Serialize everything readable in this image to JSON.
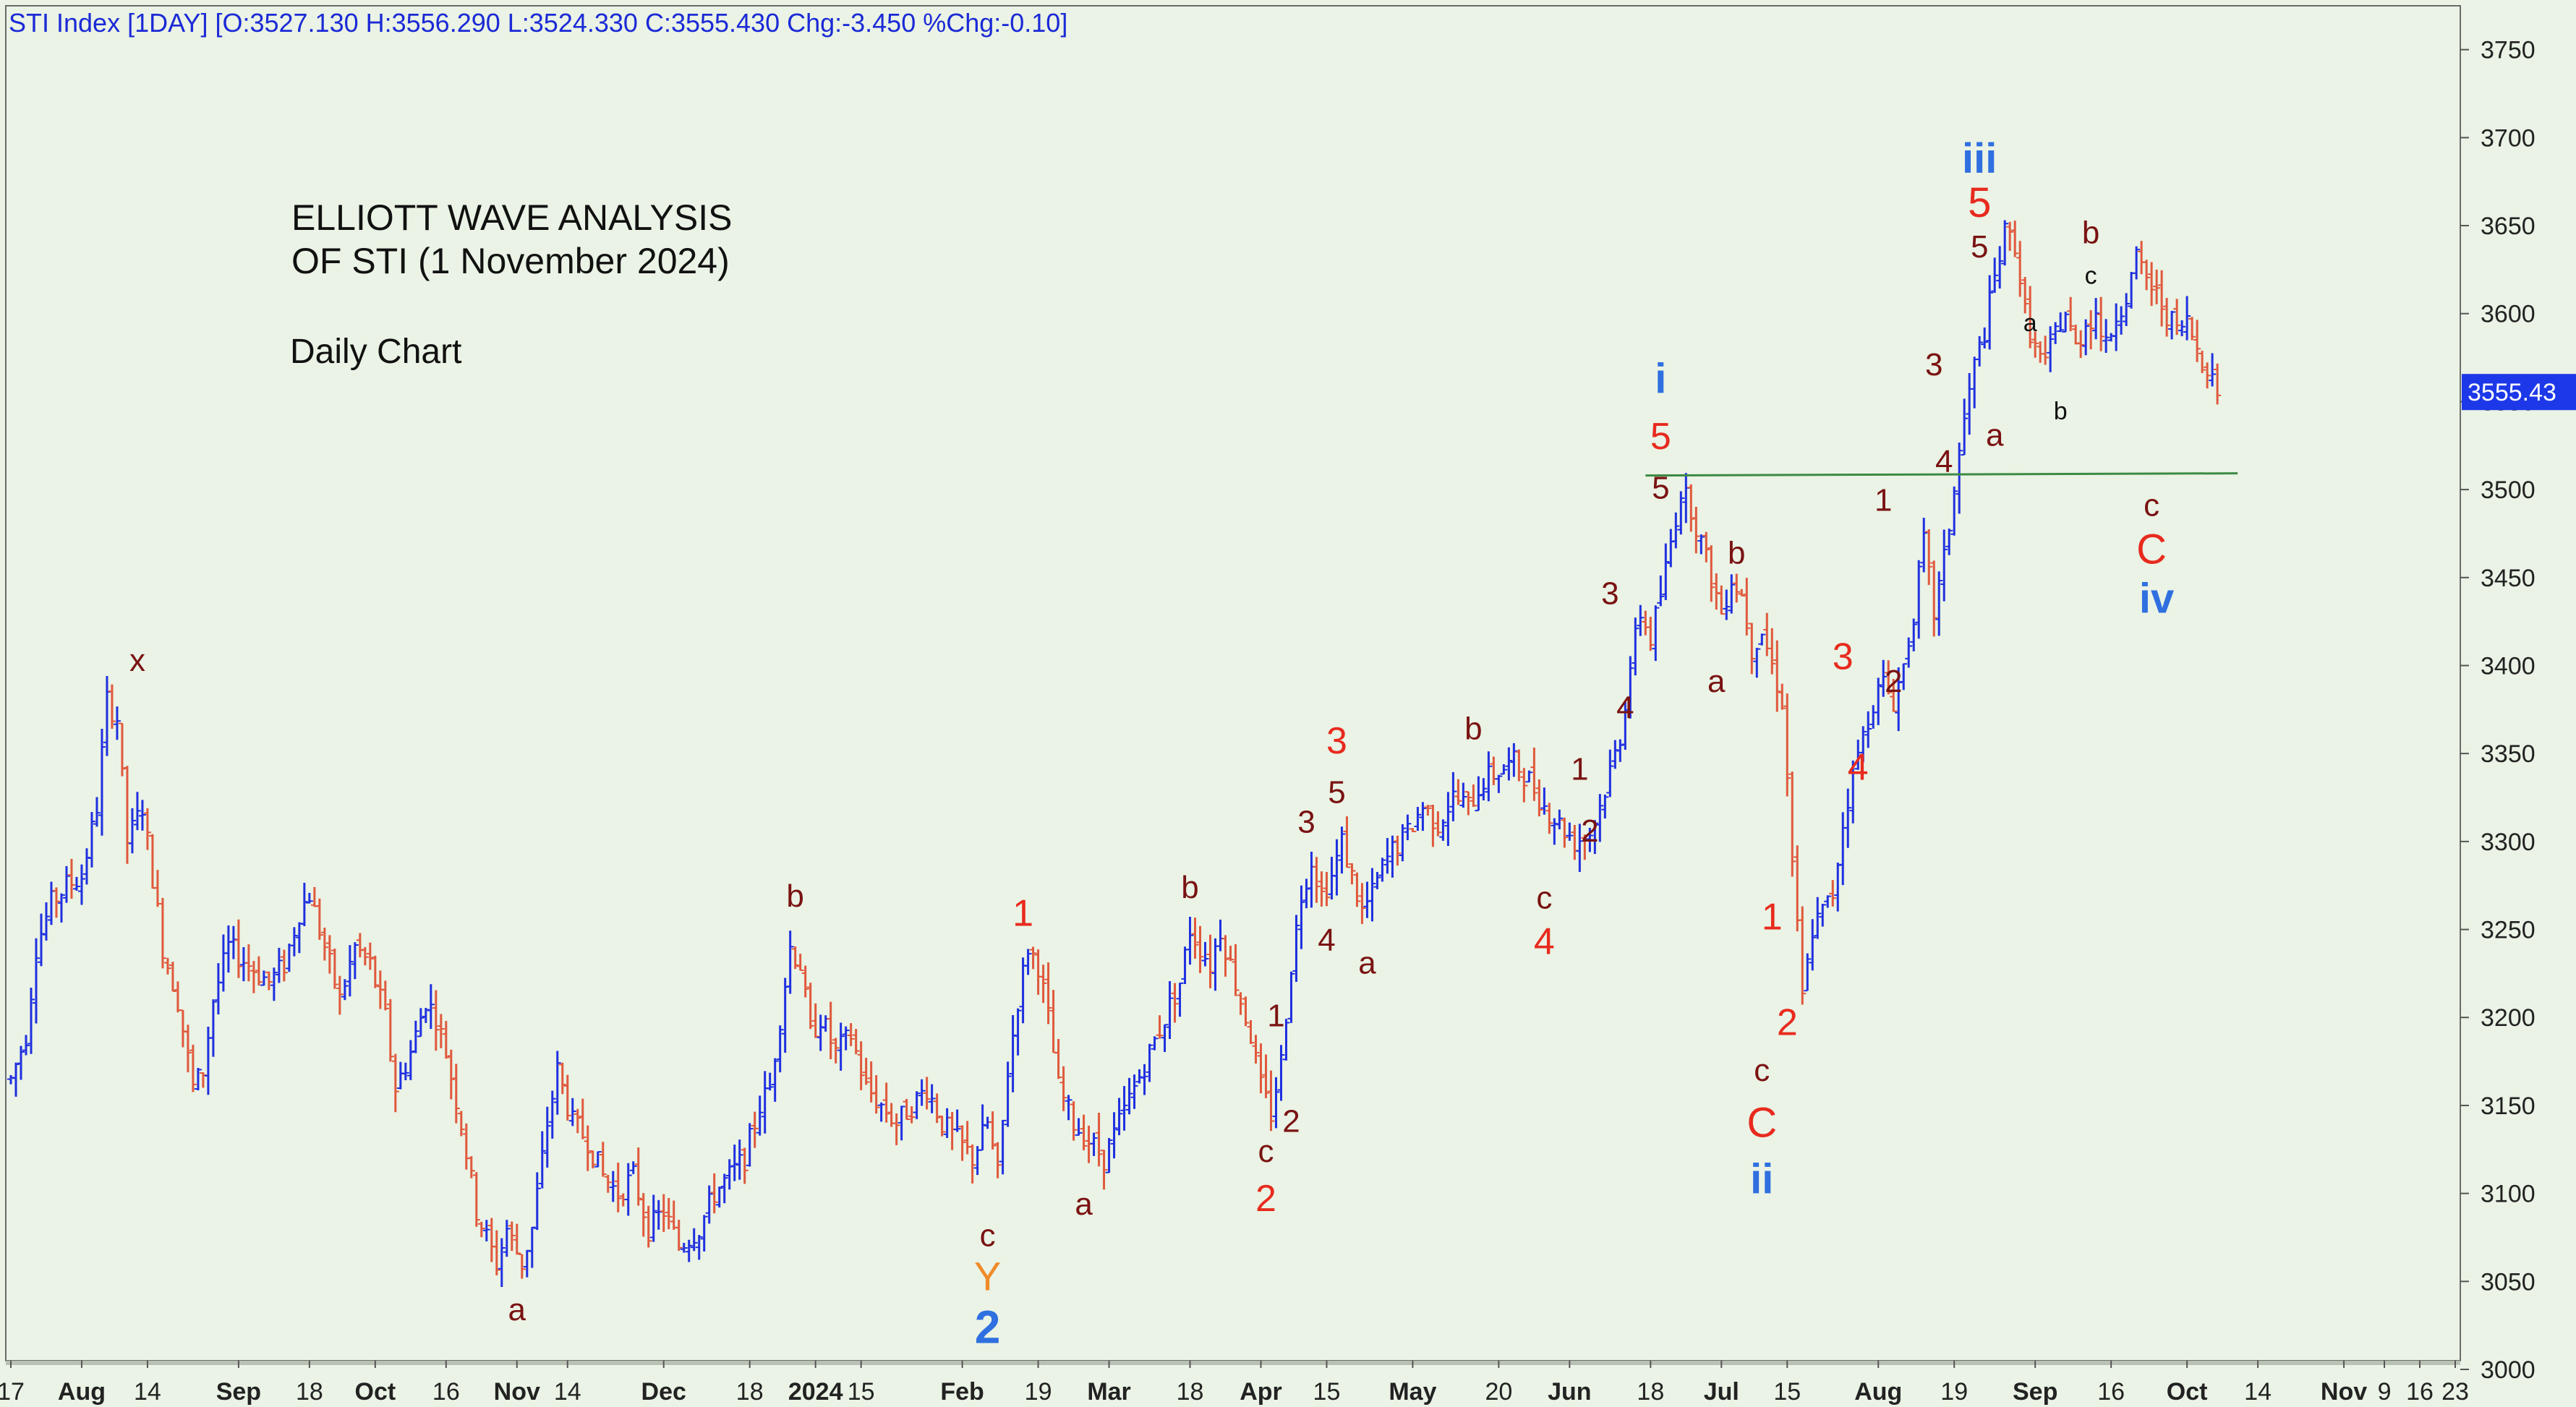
{
  "header": {
    "text": "STI Index [1DAY] [O:3527.130 H:3556.290 L:3524.330 C:3555.430 Chg:-3.450 %Chg:-0.10]"
  },
  "annotations": {
    "title_line1": "ELLIOTT WAVE ANALYSIS",
    "title_line2": "OF STI (1 November 2024)",
    "subtitle": "Daily Chart"
  },
  "colors": {
    "background": "#eaf3e5",
    "up_bar": "#1f2fe0",
    "down_bar": "#e0583c",
    "label_dark": "#7a1212",
    "label_red": "#e82a1e",
    "label_blue": "#2f6fe0",
    "label_orange": "#f08a28",
    "label_black": "#111111",
    "support_line": "#3b8a44",
    "price_tag_bg": "#1d38e8"
  },
  "chart_data": {
    "type": "ohlc",
    "ylim": [
      3000,
      3770
    ],
    "y_ticks": [
      3000,
      3050,
      3100,
      3150,
      3200,
      3250,
      3300,
      3350,
      3400,
      3450,
      3500,
      3550,
      3600,
      3650,
      3700,
      3750
    ],
    "last_price": "3555.43",
    "support_level": 3508,
    "x_ticks": [
      {
        "label": "17",
        "bold": false,
        "day": 0
      },
      {
        "label": "Aug",
        "bold": true,
        "day": 14
      },
      {
        "label": "14",
        "bold": false,
        "day": 27
      },
      {
        "label": "Sep",
        "bold": true,
        "day": 45
      },
      {
        "label": "18",
        "bold": false,
        "day": 59
      },
      {
        "label": "Oct",
        "bold": true,
        "day": 72
      },
      {
        "label": "16",
        "bold": false,
        "day": 86
      },
      {
        "label": "Nov",
        "bold": true,
        "day": 100
      },
      {
        "label": "14",
        "bold": false,
        "day": 110
      },
      {
        "label": "Dec",
        "bold": true,
        "day": 129
      },
      {
        "label": "18",
        "bold": false,
        "day": 146
      },
      {
        "label": "2024",
        "bold": true,
        "day": 159
      },
      {
        "label": "15",
        "bold": false,
        "day": 168
      },
      {
        "label": "Feb",
        "bold": true,
        "day": 188
      },
      {
        "label": "19",
        "bold": false,
        "day": 203
      },
      {
        "label": "Mar",
        "bold": true,
        "day": 217
      },
      {
        "label": "18",
        "bold": false,
        "day": 233
      },
      {
        "label": "Apr",
        "bold": true,
        "day": 247
      },
      {
        "label": "15",
        "bold": false,
        "day": 260
      },
      {
        "label": "May",
        "bold": true,
        "day": 277
      },
      {
        "label": "20",
        "bold": false,
        "day": 294
      },
      {
        "label": "Jun",
        "bold": true,
        "day": 308
      },
      {
        "label": "18",
        "bold": false,
        "day": 324
      },
      {
        "label": "Jul",
        "bold": true,
        "day": 338
      },
      {
        "label": "15",
        "bold": false,
        "day": 351
      },
      {
        "label": "Aug",
        "bold": true,
        "day": 369
      },
      {
        "label": "19",
        "bold": false,
        "day": 384
      },
      {
        "label": "Sep",
        "bold": true,
        "day": 400
      },
      {
        "label": "16",
        "bold": false,
        "day": 415
      },
      {
        "label": "Oct",
        "bold": true,
        "day": 430
      },
      {
        "label": "14",
        "bold": false,
        "day": 444
      },
      {
        "label": "Nov",
        "bold": true,
        "day": 461
      },
      {
        "label": "9",
        "bold": false,
        "day": 469
      },
      {
        "label": "16",
        "bold": false,
        "day": 476
      },
      {
        "label": "23",
        "bold": false,
        "day": 483
      }
    ],
    "day_range": [
      -1,
      484
    ],
    "anchors": [
      [
        0,
        3165
      ],
      [
        3,
        3190
      ],
      [
        5,
        3240
      ],
      [
        8,
        3265
      ],
      [
        11,
        3275
      ],
      [
        14,
        3280
      ],
      [
        17,
        3320
      ],
      [
        19,
        3380
      ],
      [
        21,
        3370
      ],
      [
        23,
        3300
      ],
      [
        26,
        3320
      ],
      [
        28,
        3280
      ],
      [
        30,
        3240
      ],
      [
        33,
        3210
      ],
      [
        36,
        3160
      ],
      [
        38,
        3170
      ],
      [
        40,
        3210
      ],
      [
        43,
        3240
      ],
      [
        47,
        3230
      ],
      [
        51,
        3220
      ],
      [
        54,
        3230
      ],
      [
        57,
        3260
      ],
      [
        59,
        3270
      ],
      [
        62,
        3240
      ],
      [
        65,
        3210
      ],
      [
        68,
        3240
      ],
      [
        71,
        3230
      ],
      [
        74,
        3200
      ],
      [
        76,
        3160
      ],
      [
        79,
        3180
      ],
      [
        82,
        3210
      ],
      [
        84,
        3200
      ],
      [
        86,
        3180
      ],
      [
        89,
        3140
      ],
      [
        92,
        3090
      ],
      [
        96,
        3060
      ],
      [
        98,
        3080
      ],
      [
        101,
        3060
      ],
      [
        103,
        3080
      ],
      [
        106,
        3140
      ],
      [
        108,
        3170
      ],
      [
        111,
        3140
      ],
      [
        114,
        3130
      ],
      [
        117,
        3110
      ],
      [
        120,
        3100
      ],
      [
        123,
        3110
      ],
      [
        126,
        3080
      ],
      [
        129,
        3090
      ],
      [
        132,
        3070
      ],
      [
        136,
        3080
      ],
      [
        139,
        3100
      ],
      [
        142,
        3110
      ],
      [
        145,
        3120
      ],
      [
        148,
        3150
      ],
      [
        150,
        3160
      ],
      [
        152,
        3200
      ],
      [
        154,
        3240
      ],
      [
        156,
        3230
      ],
      [
        158,
        3190
      ],
      [
        160,
        3200
      ],
      [
        163,
        3180
      ],
      [
        166,
        3190
      ],
      [
        169,
        3160
      ],
      [
        172,
        3150
      ],
      [
        175,
        3140
      ],
      [
        178,
        3150
      ],
      [
        181,
        3160
      ],
      [
        184,
        3140
      ],
      [
        187,
        3130
      ],
      [
        190,
        3120
      ],
      [
        193,
        3140
      ],
      [
        195,
        3110
      ],
      [
        197,
        3170
      ],
      [
        199,
        3210
      ],
      [
        201,
        3240
      ],
      [
        203,
        3230
      ],
      [
        205,
        3200
      ],
      [
        207,
        3160
      ],
      [
        210,
        3140
      ],
      [
        213,
        3130
      ],
      [
        216,
        3120
      ],
      [
        219,
        3140
      ],
      [
        222,
        3160
      ],
      [
        225,
        3180
      ],
      [
        228,
        3200
      ],
      [
        231,
        3220
      ],
      [
        233,
        3250
      ],
      [
        235,
        3240
      ],
      [
        237,
        3230
      ],
      [
        239,
        3250
      ],
      [
        241,
        3230
      ],
      [
        243,
        3210
      ],
      [
        245,
        3190
      ],
      [
        247,
        3160
      ],
      [
        249,
        3145
      ],
      [
        251,
        3175
      ],
      [
        253,
        3230
      ],
      [
        255,
        3270
      ],
      [
        257,
        3290
      ],
      [
        259,
        3270
      ],
      [
        261,
        3280
      ],
      [
        263,
        3300
      ],
      [
        265,
        3280
      ],
      [
        267,
        3260
      ],
      [
        269,
        3270
      ],
      [
        271,
        3285
      ],
      [
        273,
        3295
      ],
      [
        276,
        3305
      ],
      [
        279,
        3320
      ],
      [
        282,
        3310
      ],
      [
        285,
        3325
      ],
      [
        288,
        3320
      ],
      [
        291,
        3335
      ],
      [
        294,
        3340
      ],
      [
        297,
        3345
      ],
      [
        300,
        3335
      ],
      [
        303,
        3320
      ],
      [
        306,
        3310
      ],
      [
        309,
        3300
      ],
      [
        312,
        3305
      ],
      [
        314,
        3320
      ],
      [
        316,
        3340
      ],
      [
        318,
        3360
      ],
      [
        320,
        3400
      ],
      [
        322,
        3430
      ],
      [
        324,
        3415
      ],
      [
        326,
        3440
      ],
      [
        328,
        3470
      ],
      [
        330,
        3500
      ],
      [
        332,
        3490
      ],
      [
        334,
        3470
      ],
      [
        336,
        3450
      ],
      [
        338,
        3430
      ],
      [
        340,
        3450
      ],
      [
        342,
        3440
      ],
      [
        344,
        3410
      ],
      [
        346,
        3420
      ],
      [
        348,
        3400
      ],
      [
        350,
        3380
      ],
      [
        352,
        3290
      ],
      [
        354,
        3210
      ],
      [
        356,
        3250
      ],
      [
        358,
        3260
      ],
      [
        360,
        3270
      ],
      [
        362,
        3310
      ],
      [
        364,
        3340
      ],
      [
        366,
        3360
      ],
      [
        368,
        3380
      ],
      [
        370,
        3390
      ],
      [
        372,
        3380
      ],
      [
        374,
        3400
      ],
      [
        376,
        3430
      ],
      [
        378,
        3470
      ],
      [
        380,
        3430
      ],
      [
        382,
        3460
      ],
      [
        384,
        3500
      ],
      [
        386,
        3540
      ],
      [
        388,
        3570
      ],
      [
        390,
        3590
      ],
      [
        392,
        3620
      ],
      [
        394,
        3645
      ],
      [
        396,
        3640
      ],
      [
        398,
        3600
      ],
      [
        400,
        3580
      ],
      [
        402,
        3570
      ],
      [
        404,
        3590
      ],
      [
        406,
        3600
      ],
      [
        408,
        3580
      ],
      [
        410,
        3595
      ],
      [
        412,
        3600
      ],
      [
        414,
        3580
      ],
      [
        416,
        3600
      ],
      [
        418,
        3610
      ],
      [
        420,
        3630
      ],
      [
        422,
        3620
      ],
      [
        424,
        3610
      ],
      [
        426,
        3600
      ],
      [
        428,
        3590
      ],
      [
        430,
        3595
      ],
      [
        432,
        3580
      ],
      [
        434,
        3570
      ],
      [
        436,
        3556
      ]
    ],
    "wave_labels": [
      {
        "text": "x",
        "day": 25,
        "price": 3397,
        "size": 44,
        "color": "label_dark",
        "weight": "normal"
      },
      {
        "text": "a",
        "day": 100,
        "price": 3028,
        "size": 44,
        "color": "label_dark",
        "weight": "normal"
      },
      {
        "text": "b",
        "day": 155,
        "price": 3263,
        "size": 44,
        "color": "label_dark",
        "weight": "normal"
      },
      {
        "text": "1",
        "day": 200,
        "price": 3252,
        "size": 52,
        "color": "label_red",
        "weight": "normal"
      },
      {
        "text": "c",
        "day": 193,
        "price": 3070,
        "size": 44,
        "color": "label_dark",
        "weight": "normal"
      },
      {
        "text": "Y",
        "day": 193,
        "price": 3045,
        "size": 56,
        "color": "label_orange",
        "weight": "normal"
      },
      {
        "text": "2",
        "day": 193,
        "price": 3015,
        "size": 64,
        "color": "label_blue",
        "weight": "bold"
      },
      {
        "text": "a",
        "day": 212,
        "price": 3088,
        "size": 44,
        "color": "label_dark",
        "weight": "normal"
      },
      {
        "text": "b",
        "day": 233,
        "price": 3268,
        "size": 44,
        "color": "label_dark",
        "weight": "normal"
      },
      {
        "text": "1",
        "day": 250,
        "price": 3195,
        "size": 44,
        "color": "label_dark",
        "weight": "normal"
      },
      {
        "text": "2",
        "day": 253,
        "price": 3135,
        "size": 44,
        "color": "label_dark",
        "weight": "normal"
      },
      {
        "text": "c",
        "day": 248,
        "price": 3118,
        "size": 44,
        "color": "label_dark",
        "weight": "normal"
      },
      {
        "text": "2",
        "day": 248,
        "price": 3090,
        "size": 52,
        "color": "label_red",
        "weight": "normal"
      },
      {
        "text": "3",
        "day": 256,
        "price": 3305,
        "size": 44,
        "color": "label_dark",
        "weight": "normal"
      },
      {
        "text": "4",
        "day": 260,
        "price": 3238,
        "size": 44,
        "color": "label_dark",
        "weight": "normal"
      },
      {
        "text": "3",
        "day": 262,
        "price": 3350,
        "size": 52,
        "color": "label_red",
        "weight": "normal"
      },
      {
        "text": "5",
        "day": 262,
        "price": 3322,
        "size": 44,
        "color": "label_dark",
        "weight": "normal"
      },
      {
        "text": "a",
        "day": 268,
        "price": 3225,
        "size": 44,
        "color": "label_dark",
        "weight": "normal"
      },
      {
        "text": "b",
        "day": 289,
        "price": 3358,
        "size": 44,
        "color": "label_dark",
        "weight": "normal"
      },
      {
        "text": "c",
        "day": 303,
        "price": 3262,
        "size": 44,
        "color": "label_dark",
        "weight": "normal"
      },
      {
        "text": "4",
        "day": 303,
        "price": 3236,
        "size": 52,
        "color": "label_red",
        "weight": "normal"
      },
      {
        "text": "1",
        "day": 310,
        "price": 3335,
        "size": 44,
        "color": "label_dark",
        "weight": "normal"
      },
      {
        "text": "2",
        "day": 312,
        "price": 3300,
        "size": 44,
        "color": "label_dark",
        "weight": "normal"
      },
      {
        "text": "3",
        "day": 316,
        "price": 3435,
        "size": 44,
        "color": "label_dark",
        "weight": "normal"
      },
      {
        "text": "4",
        "day": 319,
        "price": 3370,
        "size": 44,
        "color": "label_dark",
        "weight": "normal"
      },
      {
        "text": "i",
        "day": 326,
        "price": 3555,
        "size": 58,
        "color": "label_blue",
        "weight": "bold"
      },
      {
        "text": "5",
        "day": 326,
        "price": 3523,
        "size": 52,
        "color": "label_red",
        "weight": "normal"
      },
      {
        "text": "5",
        "day": 326,
        "price": 3495,
        "size": 44,
        "color": "label_dark",
        "weight": "normal"
      },
      {
        "text": "b",
        "day": 341,
        "price": 3458,
        "size": 44,
        "color": "label_dark",
        "weight": "normal"
      },
      {
        "text": "a",
        "day": 337,
        "price": 3385,
        "size": 44,
        "color": "label_dark",
        "weight": "normal"
      },
      {
        "text": "1",
        "day": 348,
        "price": 3250,
        "size": 52,
        "color": "label_red",
        "weight": "normal"
      },
      {
        "text": "2",
        "day": 351,
        "price": 3190,
        "size": 52,
        "color": "label_red",
        "weight": "normal"
      },
      {
        "text": "c",
        "day": 346,
        "price": 3164,
        "size": 44,
        "color": "label_dark",
        "weight": "normal"
      },
      {
        "text": "C",
        "day": 346,
        "price": 3132,
        "size": 58,
        "color": "label_red",
        "weight": "normal"
      },
      {
        "text": "ii",
        "day": 346,
        "price": 3100,
        "size": 58,
        "color": "label_blue",
        "weight": "bold"
      },
      {
        "text": "3",
        "day": 362,
        "price": 3398,
        "size": 52,
        "color": "label_red",
        "weight": "normal"
      },
      {
        "text": "4",
        "day": 365,
        "price": 3335,
        "size": 52,
        "color": "label_red",
        "weight": "normal"
      },
      {
        "text": "1",
        "day": 370,
        "price": 3488,
        "size": 44,
        "color": "label_dark",
        "weight": "normal"
      },
      {
        "text": "2",
        "day": 372,
        "price": 3385,
        "size": 44,
        "color": "label_dark",
        "weight": "normal"
      },
      {
        "text": "3",
        "day": 380,
        "price": 3565,
        "size": 44,
        "color": "label_dark",
        "weight": "normal"
      },
      {
        "text": "4",
        "day": 382,
        "price": 3510,
        "size": 44,
        "color": "label_dark",
        "weight": "normal"
      },
      {
        "text": "iii",
        "day": 389,
        "price": 3680,
        "size": 58,
        "color": "label_blue",
        "weight": "bold"
      },
      {
        "text": "5",
        "day": 389,
        "price": 3655,
        "size": 58,
        "color": "label_red",
        "weight": "normal"
      },
      {
        "text": "5",
        "day": 389,
        "price": 3632,
        "size": 44,
        "color": "label_dark",
        "weight": "normal"
      },
      {
        "text": "a",
        "day": 392,
        "price": 3525,
        "size": 44,
        "color": "label_dark",
        "weight": "normal"
      },
      {
        "text": "a",
        "day": 399,
        "price": 3590,
        "size": 34,
        "color": "label_black",
        "weight": "normal"
      },
      {
        "text": "b",
        "day": 405,
        "price": 3540,
        "size": 34,
        "color": "label_black",
        "weight": "normal"
      },
      {
        "text": "b",
        "day": 411,
        "price": 3640,
        "size": 44,
        "color": "label_dark",
        "weight": "normal"
      },
      {
        "text": "c",
        "day": 411,
        "price": 3617,
        "size": 34,
        "color": "label_black",
        "weight": "normal"
      },
      {
        "text": "c",
        "day": 423,
        "price": 3485,
        "size": 44,
        "color": "label_dark",
        "weight": "normal"
      },
      {
        "text": "C",
        "day": 423,
        "price": 3458,
        "size": 58,
        "color": "label_red",
        "weight": "normal"
      },
      {
        "text": "iv",
        "day": 424,
        "price": 3430,
        "size": 58,
        "color": "label_blue",
        "weight": "bold"
      }
    ]
  }
}
